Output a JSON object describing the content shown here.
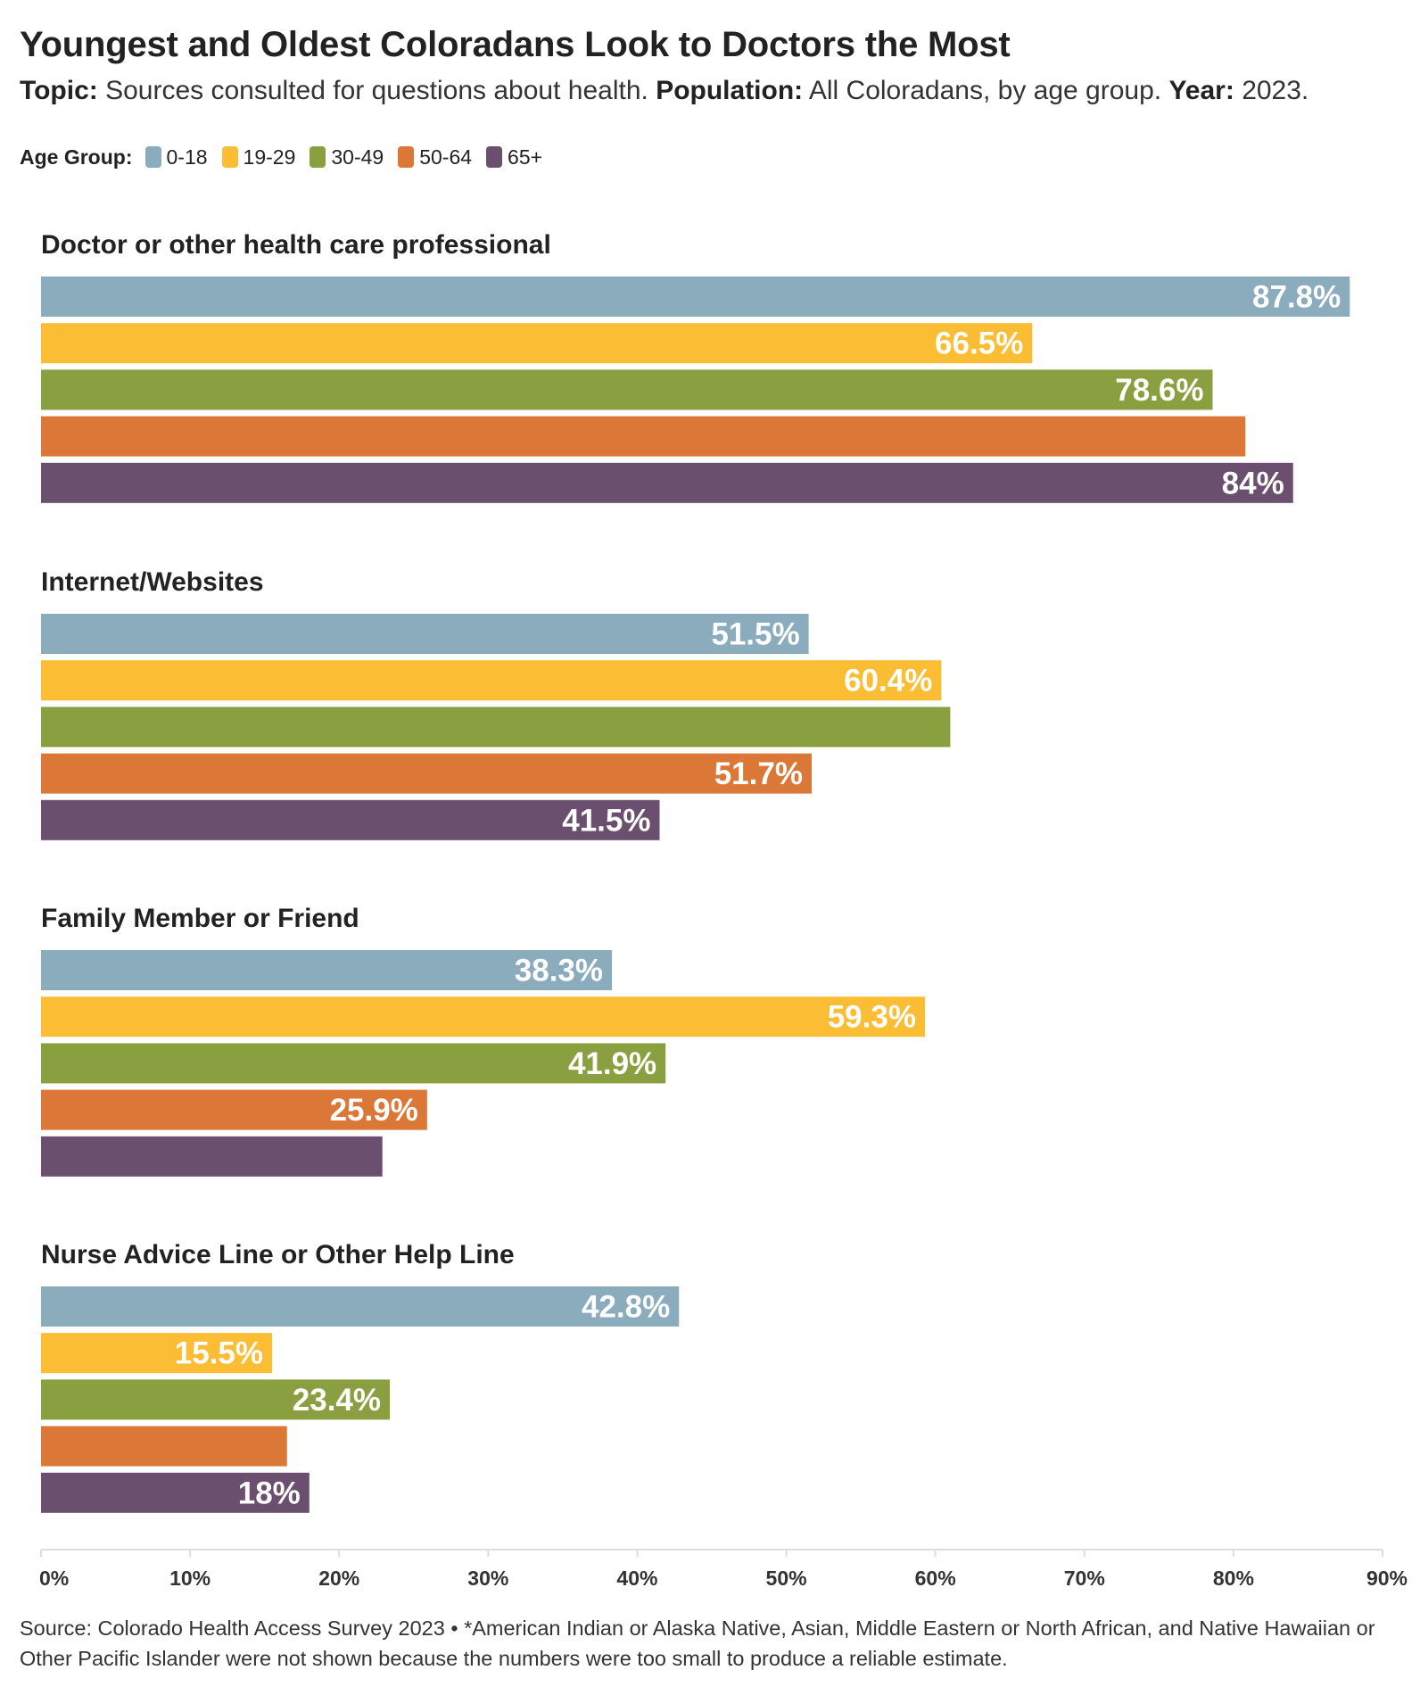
{
  "header": {
    "title": "Youngest and Oldest Coloradans Look to Doctors the Most",
    "topic_label": "Topic:",
    "topic_text": "Sources consulted for questions about health.",
    "population_label": "Population:",
    "population_text": "All Coloradans, by age group.",
    "year_label": "Year:",
    "year_text": "2023."
  },
  "legend": {
    "label": "Age Group:",
    "items": [
      "0-18",
      "19-29",
      "30-49",
      "50-64",
      "65+"
    ]
  },
  "colors": {
    "0-18": "#8aacbd",
    "19-29": "#fbbd33",
    "30-49": "#8aa040",
    "50-64": "#dc7837",
    "65+": "#6b4f6e",
    "axis": "#dddddd"
  },
  "chart_data": {
    "type": "bar",
    "orientation": "horizontal",
    "title": "Youngest and Oldest Coloradans Look to Doctors the Most",
    "categories": [
      "Doctor or other health care professional",
      "Internet/Websites",
      "Family Member or Friend",
      "Nurse Advice Line or Other Help Line"
    ],
    "series": [
      {
        "name": "0-18",
        "values": [
          87.8,
          51.5,
          38.3,
          42.8
        ],
        "labels": [
          "87.8%",
          "51.5%",
          "38.3%",
          "42.8%"
        ]
      },
      {
        "name": "19-29",
        "values": [
          66.5,
          60.4,
          59.3,
          15.5
        ],
        "labels": [
          "66.5%",
          "60.4%",
          "59.3%",
          "15.5%"
        ]
      },
      {
        "name": "30-49",
        "values": [
          78.6,
          61.0,
          41.9,
          23.4
        ],
        "labels": [
          "78.6%",
          "",
          "41.9%",
          "23.4%"
        ]
      },
      {
        "name": "50-64",
        "values": [
          80.8,
          51.7,
          25.9,
          16.5
        ],
        "labels": [
          "",
          "51.7%",
          "25.9%",
          ""
        ]
      },
      {
        "name": "65+",
        "values": [
          84,
          41.5,
          22.9,
          18
        ],
        "labels": [
          "84%",
          "41.5%",
          "",
          "18%"
        ]
      }
    ],
    "xlim": [
      0,
      90
    ],
    "xticks": [
      0,
      10,
      20,
      30,
      40,
      50,
      60,
      70,
      80,
      90
    ],
    "xtick_labels": [
      "0%",
      "10%",
      "20%",
      "30%",
      "40%",
      "50%",
      "60%",
      "70%",
      "80%",
      "90%"
    ],
    "grid": false,
    "legend_position": "top-left"
  },
  "footer": {
    "source": "Source: Colorado Health Access Survey 2023 • *American Indian or Alaska Native, Asian, Middle Eastern or North African, and Native Hawaiian or Other Pacific Islander were not shown because the numbers were too small to produce a reliable estimate."
  }
}
